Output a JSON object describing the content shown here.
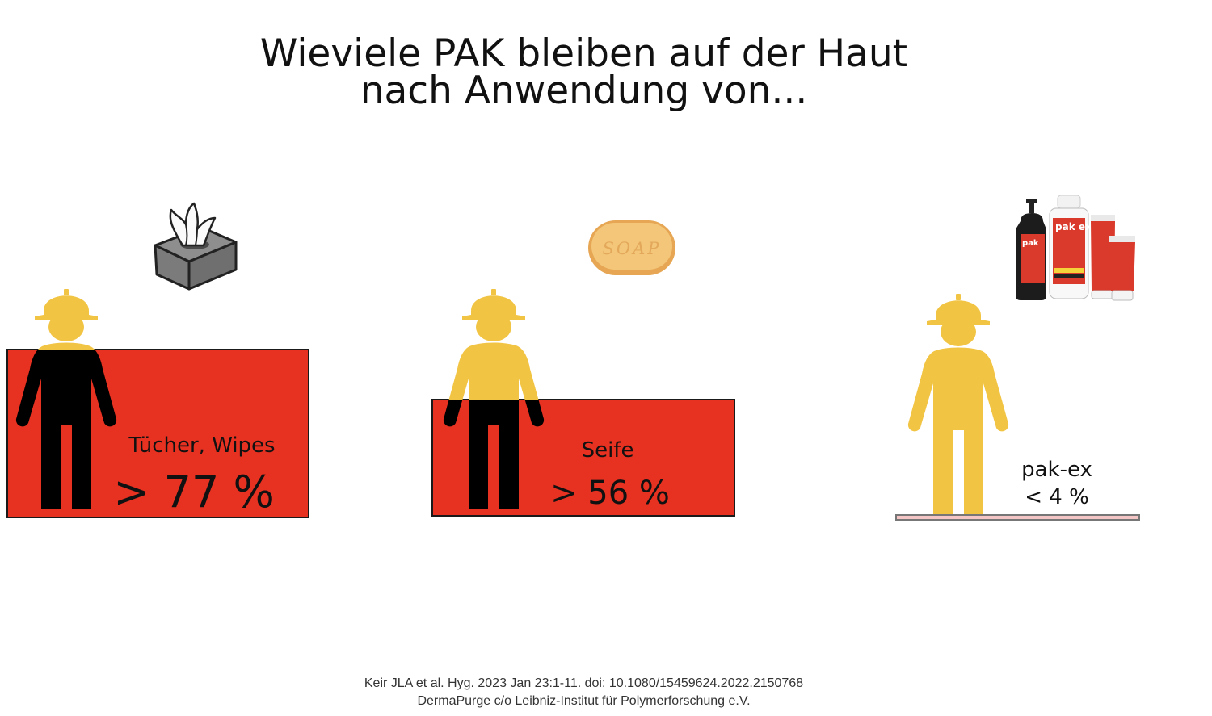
{
  "title": {
    "line1": "Wieviele PAK bleiben auf der Haut",
    "line2": "nach Anwendung von..."
  },
  "colors": {
    "bar": "#e73222",
    "worker_clean": "#f2c443",
    "worker_dirty": "#000000",
    "thin_bar": "#f4c6c6"
  },
  "panels": [
    {
      "name": "Tücher, Wipes",
      "value": "> 77 %",
      "icon": "tissue-box-icon"
    },
    {
      "name": "Seife",
      "value": "> 56 %",
      "icon": "soap-bar-icon"
    },
    {
      "name": "pak-ex",
      "value": "< 4 %",
      "icon": "pak-ex-products-icon"
    }
  ],
  "soap_text": "SOAP",
  "product_text": "pak ex",
  "footer": {
    "line1": "Keir JLA et al. Hyg. 2023 Jan 23:1-11. doi: 10.1080/15459624.2022.2150768",
    "line2": "DermaPurge c/o Leibniz-Institut für Polymerforschung e.V."
  }
}
